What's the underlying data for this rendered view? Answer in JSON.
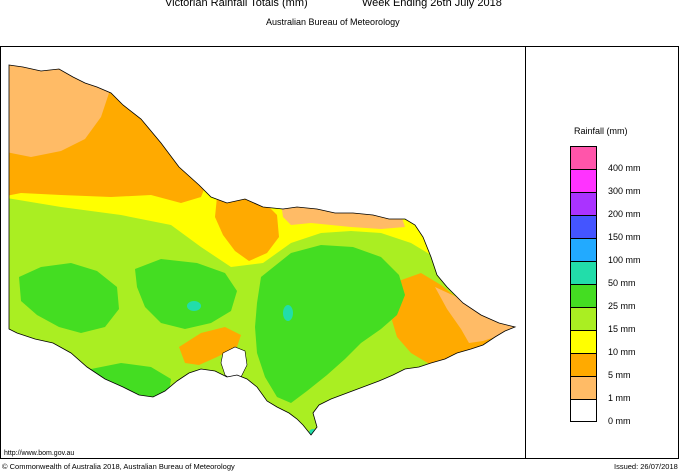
{
  "header": {
    "title_left": "Victorian Rainfall Totals (mm)",
    "title_right": "Week Ending 26th July 2018",
    "subtitle": "Australian Bureau of Meteorology"
  },
  "legend": {
    "title": "Rainfall (mm)",
    "items": [
      {
        "label": "400 mm",
        "color": "#ff55aa"
      },
      {
        "label": "300 mm",
        "color": "#ff33ff"
      },
      {
        "label": "200 mm",
        "color": "#aa33ff"
      },
      {
        "label": "150 mm",
        "color": "#4455ff"
      },
      {
        "label": "100 mm",
        "color": "#22aaff"
      },
      {
        "label": "50 mm",
        "color": "#22ddaa"
      },
      {
        "label": "25 mm",
        "color": "#44dd22"
      },
      {
        "label": "15 mm",
        "color": "#aaee22"
      },
      {
        "label": "10 mm",
        "color": "#ffff00"
      },
      {
        "label": "5 mm",
        "color": "#ffaa00"
      },
      {
        "label": "1 mm",
        "color": "#ffbb66"
      },
      {
        "label": "0 mm",
        "color": "#ffffff"
      }
    ]
  },
  "footer": {
    "url": "http://www.bom.gov.au",
    "copyright": "© Commonwealth of Australia 2018, Australian Bureau of Meteorology",
    "issued": "Issued: 26/07/2018"
  }
}
